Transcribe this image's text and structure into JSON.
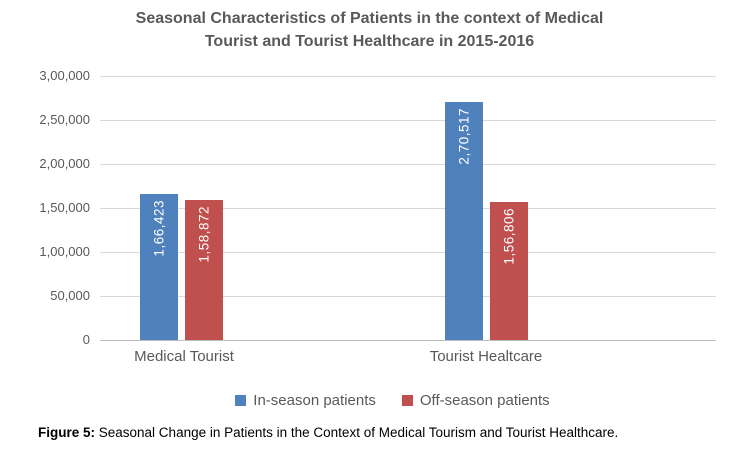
{
  "figure": {
    "caption_prefix": "Figure 5:",
    "caption_text": " Seasonal Change in Patients in the Context of Medical Tourism and Tourist Healthcare."
  },
  "chart_data": {
    "type": "bar",
    "title": "Seasonal Characteristics of Patients in the context of Medical Tourist and Tourist Healthcare in 2015-2016",
    "title_lines": [
      "Seasonal Characteristics of Patients in the context of Medical",
      "Tourist and Tourist Healthcare in 2015-2016"
    ],
    "categories": [
      "Medical Tourist",
      "Tourist Healtcare"
    ],
    "series": [
      {
        "name": "In-season patients",
        "color": "#4F81BD",
        "values": [
          166423,
          270517
        ],
        "labels": [
          "1,66,423",
          "2,70,517"
        ]
      },
      {
        "name": "Off-season patients",
        "color": "#C0504D",
        "values": [
          158872,
          156806
        ],
        "labels": [
          "1,58,872",
          "1,56,806"
        ]
      }
    ],
    "ylim": [
      0,
      300000
    ],
    "ytick_interval": 50000,
    "yticks": [
      "0",
      "50,000",
      "1,00,000",
      "1,50,000",
      "2,00,000",
      "2,50,000",
      "3,00,000"
    ],
    "grid": true,
    "legend_position": "bottom",
    "text_color": "#595959",
    "gridline_color": "#d9d9d9"
  }
}
